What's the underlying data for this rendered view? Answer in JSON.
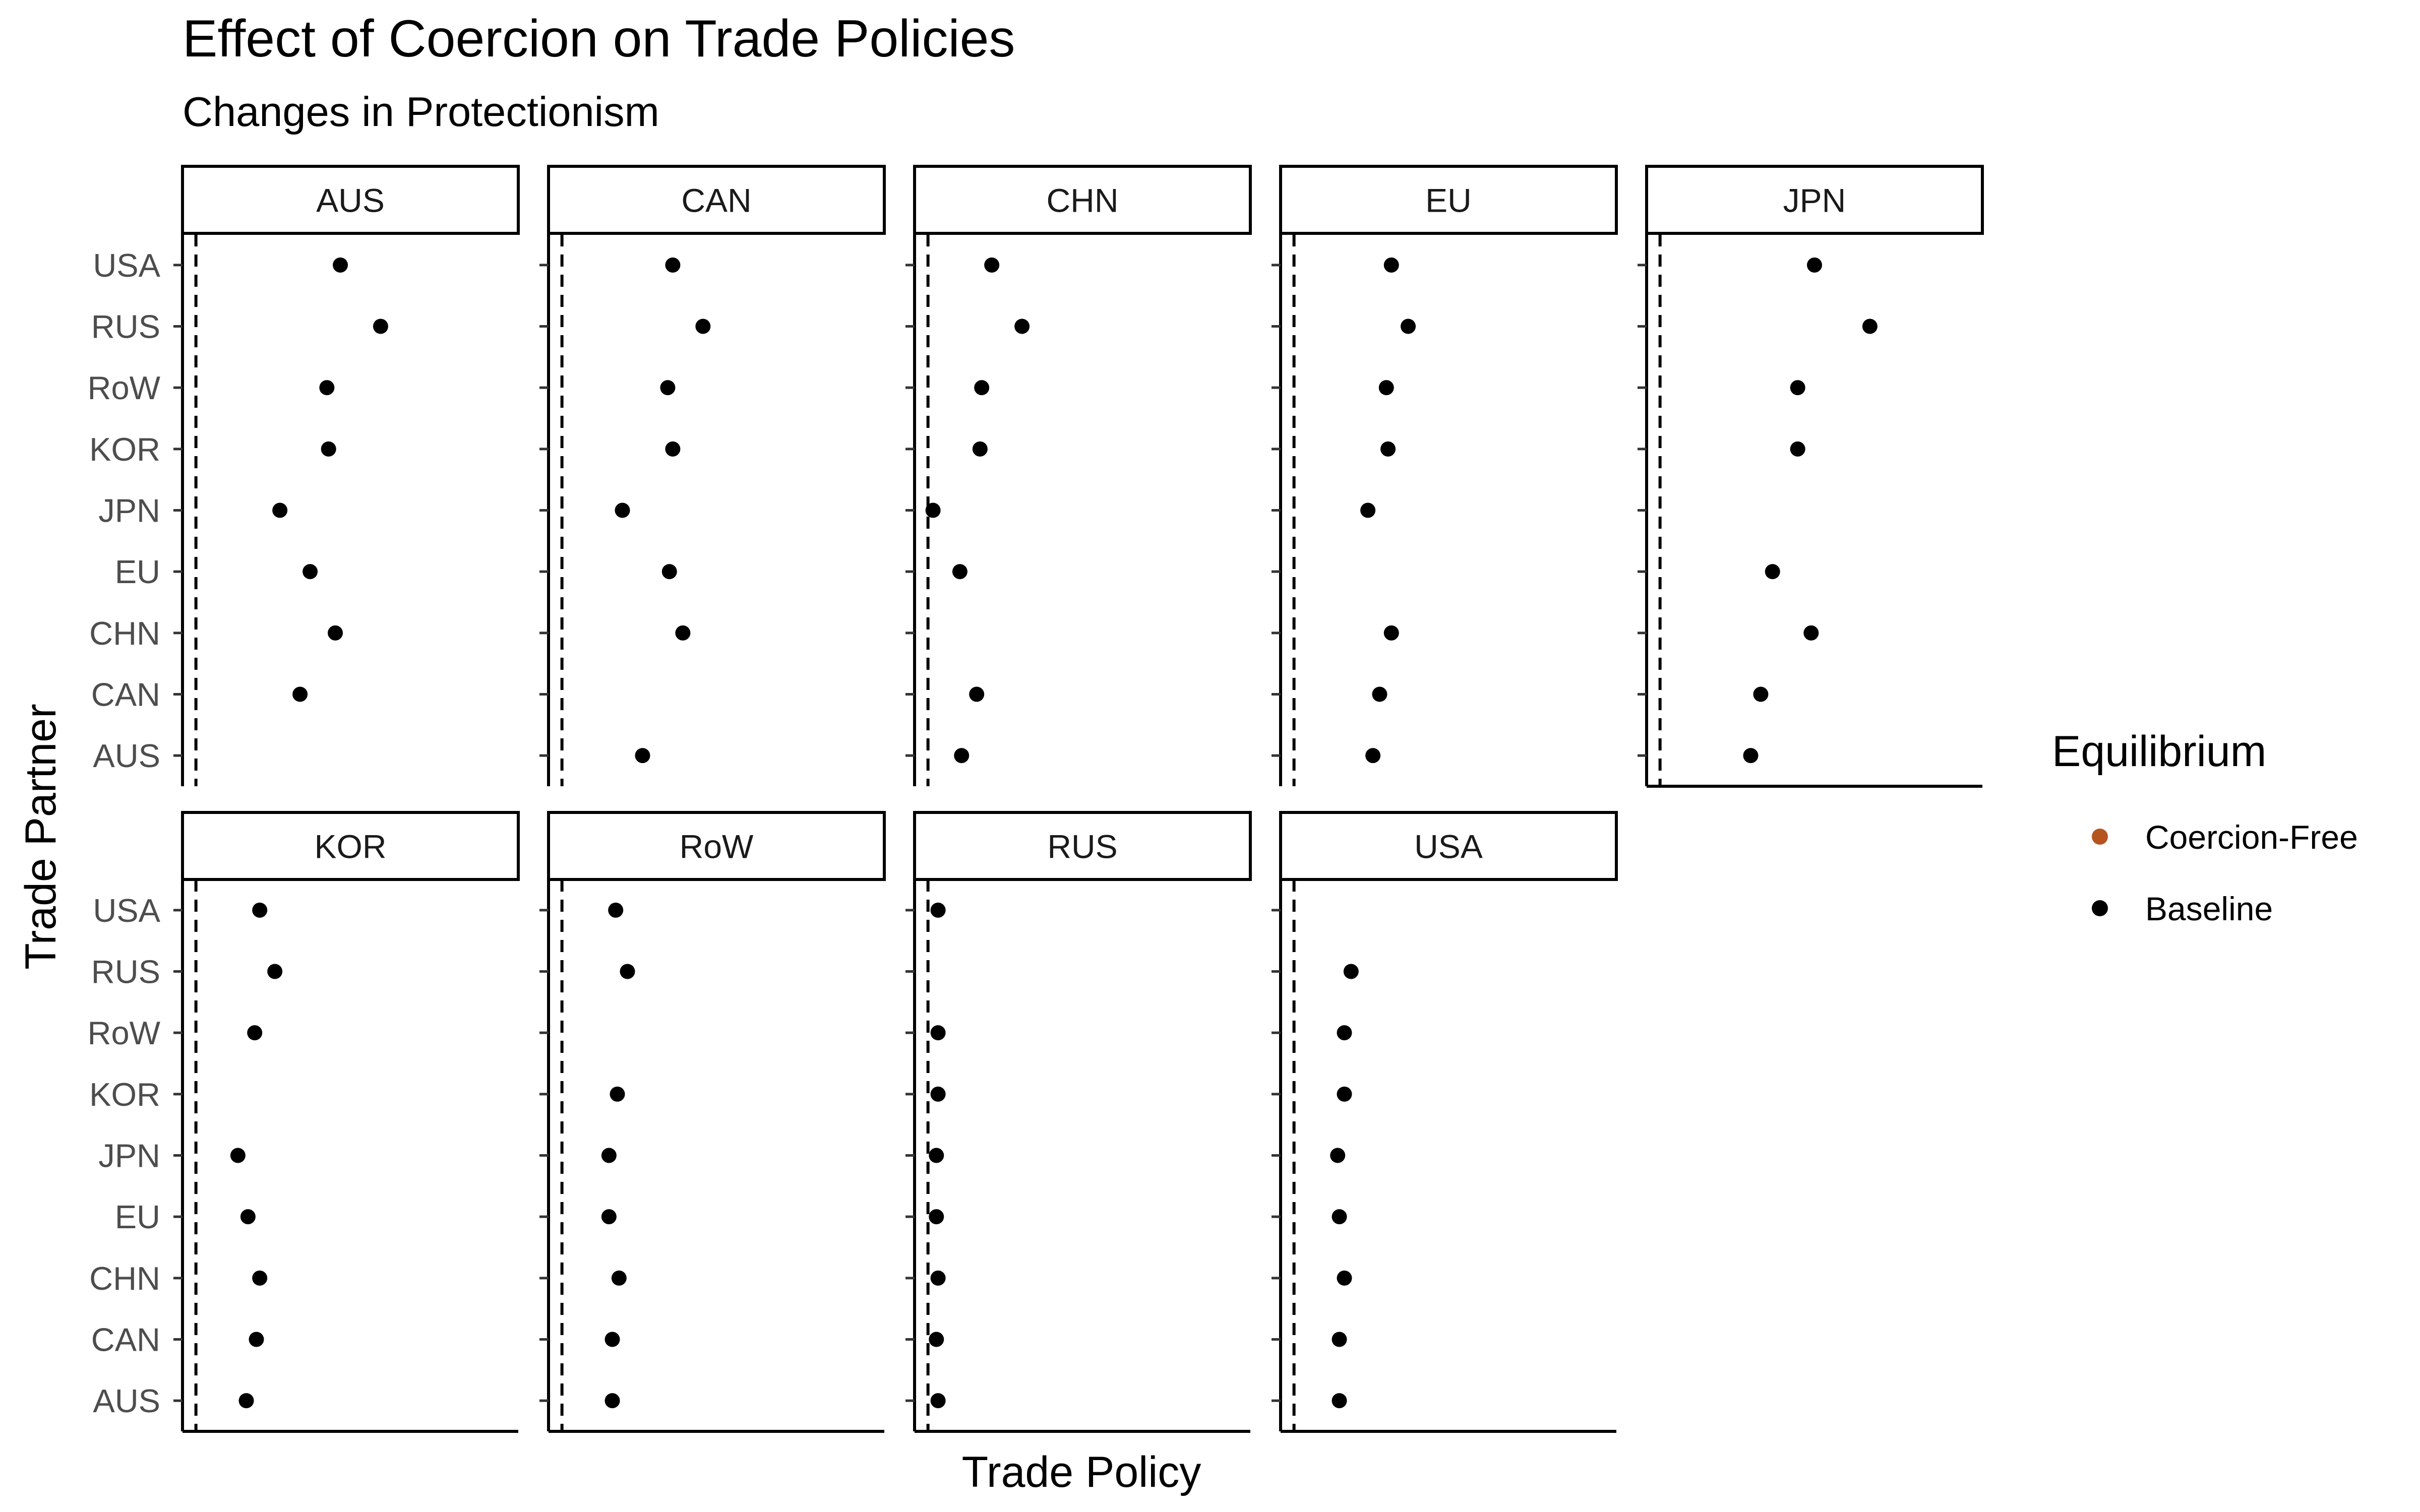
{
  "chart_data": {
    "type": "scatter",
    "title": "Effect of Coercion on Trade Policies",
    "subtitle": "Changes in Protectionism",
    "xlabel": "Trade Policy",
    "ylabel": "Trade Partner",
    "partners": [
      "AUS",
      "CAN",
      "CHN",
      "EU",
      "JPN",
      "KOR",
      "RoW",
      "RUS",
      "USA"
    ],
    "xlim": [
      0,
      1
    ],
    "reference_line_x": 0.04,
    "legend": {
      "title": "Equilibrium",
      "position": "right",
      "entries": [
        {
          "label": "Coercion-Free",
          "color": "#b5541f"
        },
        {
          "label": "Baseline",
          "color": "#000000"
        }
      ]
    },
    "panels": [
      {
        "name": "AUS",
        "values": {
          "USA": 0.47,
          "RUS": 0.59,
          "RoW": 0.43,
          "KOR": 0.435,
          "JPN": 0.29,
          "EU": 0.38,
          "CHN": 0.455,
          "CAN": 0.35,
          "AUS": null
        }
      },
      {
        "name": "CAN",
        "values": {
          "USA": 0.37,
          "RUS": 0.46,
          "RoW": 0.355,
          "KOR": 0.37,
          "JPN": 0.22,
          "EU": 0.36,
          "CHN": 0.4,
          "CAN": null,
          "AUS": 0.28
        }
      },
      {
        "name": "CHN",
        "values": {
          "USA": 0.23,
          "RUS": 0.32,
          "RoW": 0.2,
          "KOR": 0.195,
          "JPN": 0.055,
          "EU": 0.135,
          "CHN": null,
          "CAN": 0.185,
          "AUS": 0.14
        }
      },
      {
        "name": "EU",
        "values": {
          "USA": 0.33,
          "RUS": 0.38,
          "RoW": 0.315,
          "KOR": 0.32,
          "JPN": 0.26,
          "EU": null,
          "CHN": 0.33,
          "CAN": 0.295,
          "AUS": 0.275
        }
      },
      {
        "name": "JPN",
        "values": {
          "USA": 0.5,
          "RUS": 0.665,
          "RoW": 0.45,
          "KOR": 0.45,
          "JPN": null,
          "EU": 0.375,
          "CHN": 0.49,
          "CAN": 0.34,
          "AUS": 0.31
        }
      },
      {
        "name": "KOR",
        "values": {
          "USA": 0.23,
          "RUS": 0.275,
          "RoW": 0.215,
          "KOR": null,
          "JPN": 0.165,
          "EU": 0.195,
          "CHN": 0.23,
          "CAN": 0.22,
          "AUS": 0.19
        }
      },
      {
        "name": "RoW",
        "values": {
          "USA": 0.2,
          "RUS": 0.235,
          "RoW": null,
          "KOR": 0.205,
          "JPN": 0.18,
          "EU": 0.18,
          "CHN": 0.21,
          "CAN": 0.19,
          "AUS": 0.19
        }
      },
      {
        "name": "RUS",
        "values": {
          "USA": 0.07,
          "RUS": null,
          "RoW": 0.07,
          "KOR": 0.07,
          "JPN": 0.065,
          "EU": 0.065,
          "CHN": 0.07,
          "CAN": 0.065,
          "AUS": 0.07
        }
      },
      {
        "name": "USA",
        "values": {
          "USA": null,
          "RUS": 0.21,
          "RoW": 0.19,
          "KOR": 0.19,
          "JPN": 0.17,
          "EU": 0.175,
          "CHN": 0.19,
          "CAN": 0.175,
          "AUS": 0.175
        }
      }
    ]
  }
}
